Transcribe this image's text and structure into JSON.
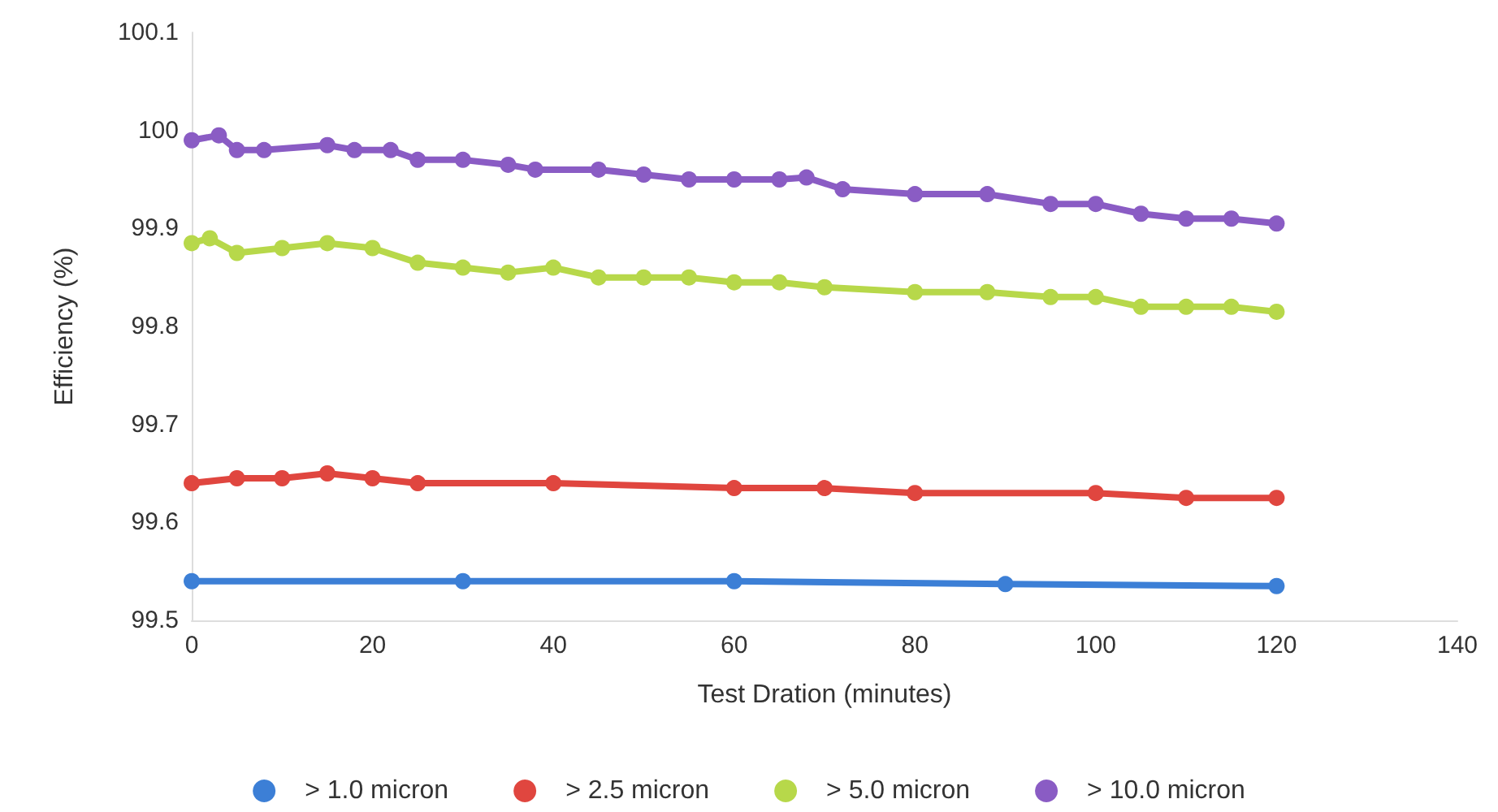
{
  "chart_data": {
    "type": "line",
    "xlabel": "Test Dration (minutes)",
    "ylabel": "Efficiency (%)",
    "xlim": [
      0,
      140
    ],
    "xticks": [
      0,
      20,
      40,
      60,
      80,
      100,
      120,
      140
    ],
    "ylim": [
      99.5,
      100.1
    ],
    "yticks": [
      99.5,
      99.6,
      99.7,
      99.8,
      99.9,
      100,
      100.1
    ],
    "grid": false,
    "legend": "bottom",
    "marker": "circle",
    "series": [
      {
        "name": "> 1.0 micron",
        "color": "#3c7fd6",
        "x": [
          0,
          30,
          60,
          90,
          120
        ],
        "values": [
          99.54,
          99.54,
          99.54,
          99.537,
          99.535
        ]
      },
      {
        "name": "> 2.5 micron",
        "color": "#e0463f",
        "x": [
          0,
          5,
          10,
          15,
          20,
          25,
          40,
          60,
          70,
          80,
          100,
          110,
          120
        ],
        "values": [
          99.64,
          99.645,
          99.645,
          99.65,
          99.645,
          99.64,
          99.64,
          99.635,
          99.635,
          99.63,
          99.63,
          99.625,
          99.625
        ]
      },
      {
        "name": "> 5.0 micron",
        "color": "#b7d84a",
        "x": [
          0,
          2,
          5,
          10,
          15,
          20,
          25,
          30,
          35,
          40,
          45,
          50,
          55,
          60,
          65,
          70,
          80,
          88,
          95,
          100,
          105,
          110,
          115,
          120
        ],
        "values": [
          99.885,
          99.89,
          99.875,
          99.88,
          99.885,
          99.88,
          99.865,
          99.86,
          99.855,
          99.86,
          99.85,
          99.85,
          99.85,
          99.845,
          99.845,
          99.84,
          99.835,
          99.835,
          99.83,
          99.83,
          99.82,
          99.82,
          99.82,
          99.815
        ]
      },
      {
        "name": "> 10.0 micron",
        "color": "#8a5cc4",
        "x": [
          0,
          3,
          5,
          8,
          15,
          18,
          22,
          25,
          30,
          35,
          38,
          45,
          50,
          55,
          60,
          65,
          68,
          72,
          80,
          88,
          95,
          100,
          105,
          110,
          115,
          120
        ],
        "values": [
          99.99,
          99.995,
          99.98,
          99.98,
          99.985,
          99.98,
          99.98,
          99.97,
          99.97,
          99.965,
          99.96,
          99.96,
          99.955,
          99.95,
          99.95,
          99.95,
          99.952,
          99.94,
          99.935,
          99.935,
          99.925,
          99.925,
          99.915,
          99.91,
          99.91,
          99.905
        ]
      }
    ]
  }
}
